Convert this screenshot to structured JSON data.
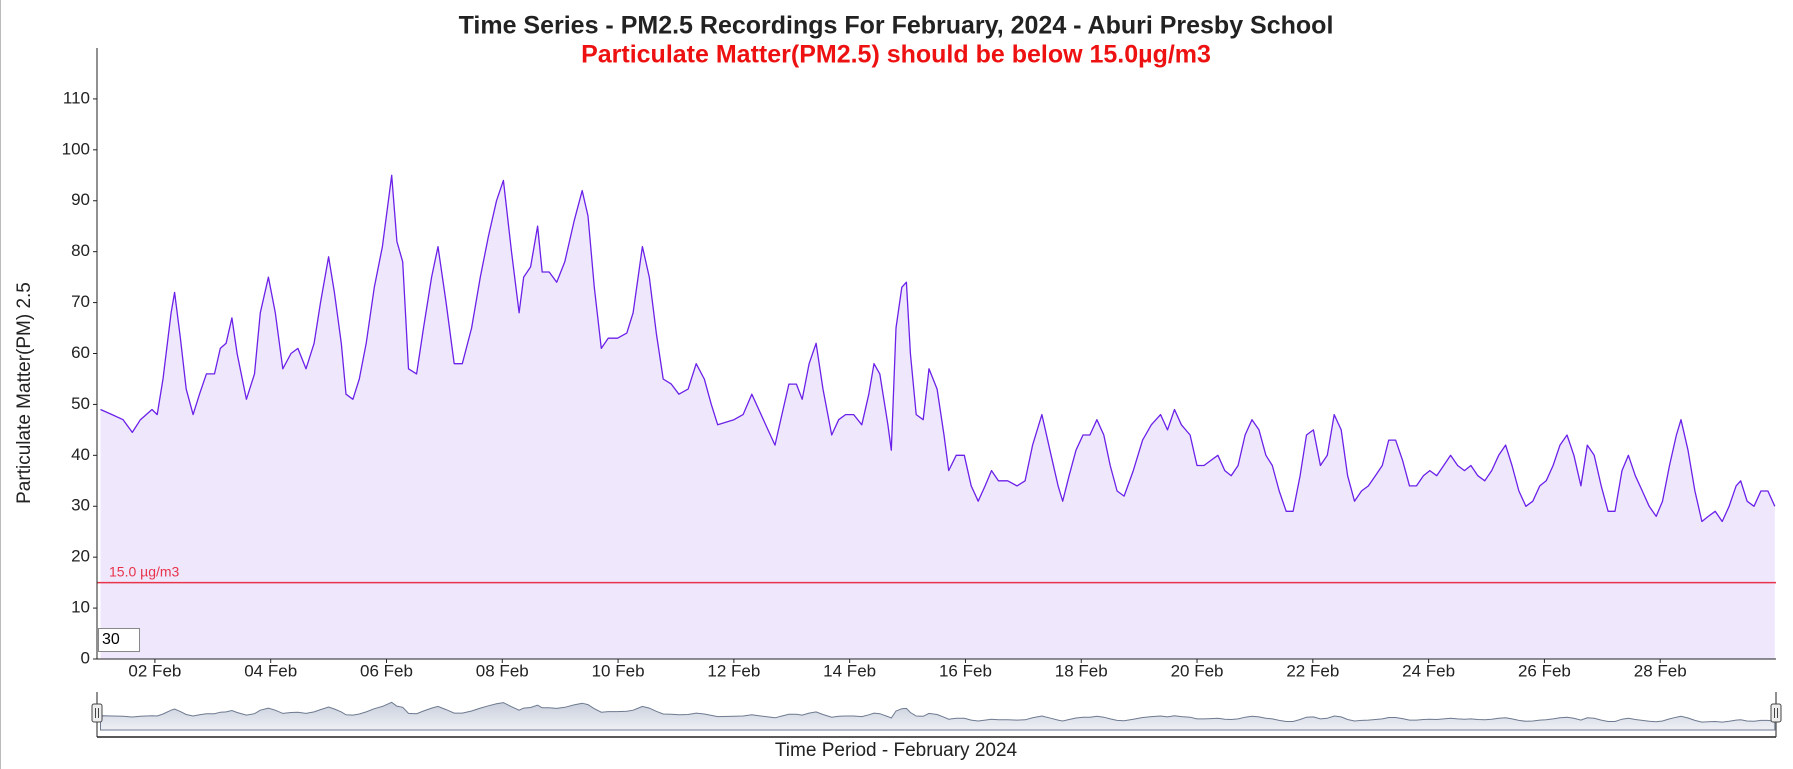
{
  "chart_data": {
    "type": "line",
    "title": "Time Series - PM2.5 Recordings For February, 2024 - Aburi Presby School",
    "subtitle": "Particulate Matter(PM2.5) should be below 15.0µg/m3",
    "y_label": "Particulate Matter(PM) 2.5",
    "x_label": "Time Period - February 2024",
    "color": "#6b21e8",
    "fill_color": "#efe8fd",
    "roll_period": 30,
    "threshold": {
      "value": 15,
      "label": "15.0 µg/m3",
      "color": "#e8334a"
    },
    "xlim": [
      1,
      30
    ],
    "xticks": [
      {
        "value": 2,
        "label": "02 Feb"
      },
      {
        "value": 4,
        "label": "04 Feb"
      },
      {
        "value": 6,
        "label": "06 Feb"
      },
      {
        "value": 8,
        "label": "08 Feb"
      },
      {
        "value": 10,
        "label": "10 Feb"
      },
      {
        "value": 12,
        "label": "12 Feb"
      },
      {
        "value": 14,
        "label": "14 Feb"
      },
      {
        "value": 16,
        "label": "16 Feb"
      },
      {
        "value": 18,
        "label": "18 Feb"
      },
      {
        "value": 20,
        "label": "20 Feb"
      },
      {
        "value": 22,
        "label": "22 Feb"
      },
      {
        "value": 24,
        "label": "24 Feb"
      },
      {
        "value": 26,
        "label": "26 Feb"
      },
      {
        "value": 28,
        "label": "28 Feb"
      }
    ],
    "ylim": [
      0,
      120
    ],
    "yticks": [
      0,
      10,
      20,
      30,
      40,
      50,
      60,
      70,
      80,
      90,
      100,
      110
    ],
    "x": [
      1.06,
      1.26,
      1.45,
      1.61,
      1.75,
      1.95,
      2.04,
      2.14,
      2.28,
      2.34,
      2.44,
      2.54,
      2.66,
      2.77,
      2.89,
      3.03,
      3.13,
      3.23,
      3.33,
      3.42,
      3.58,
      3.72,
      3.82,
      3.96,
      4.08,
      4.21,
      4.35,
      4.47,
      4.61,
      4.75,
      4.86,
      5.0,
      5.1,
      5.22,
      5.3,
      5.42,
      5.53,
      5.65,
      5.79,
      5.93,
      6.09,
      6.18,
      6.28,
      6.38,
      6.52,
      6.64,
      6.78,
      6.89,
      7.03,
      7.17,
      7.31,
      7.47,
      7.62,
      7.76,
      7.9,
      8.02,
      8.16,
      8.29,
      8.37,
      8.49,
      8.61,
      8.69,
      8.81,
      8.94,
      9.08,
      9.24,
      9.38,
      9.48,
      9.59,
      9.71,
      9.83,
      9.99,
      10.15,
      10.26,
      10.42,
      10.54,
      10.66,
      10.78,
      10.92,
      11.05,
      11.21,
      11.35,
      11.49,
      11.61,
      11.72,
      12.0,
      12.16,
      12.31,
      12.43,
      12.59,
      12.71,
      12.83,
      12.95,
      13.08,
      13.18,
      13.3,
      13.42,
      13.54,
      13.69,
      13.81,
      13.93,
      14.07,
      14.21,
      14.33,
      14.42,
      14.52,
      14.66,
      14.72,
      14.8,
      14.9,
      14.98,
      15.05,
      15.15,
      15.27,
      15.37,
      15.51,
      15.63,
      15.71,
      15.84,
      15.98,
      16.1,
      16.22,
      16.34,
      16.45,
      16.57,
      16.73,
      16.89,
      17.03,
      17.16,
      17.32,
      17.48,
      17.6,
      17.68,
      17.79,
      17.91,
      18.03,
      18.15,
      18.27,
      18.39,
      18.5,
      18.62,
      18.74,
      18.9,
      19.06,
      19.21,
      19.37,
      19.49,
      19.61,
      19.73,
      19.88,
      20.0,
      20.12,
      20.24,
      20.36,
      20.48,
      20.59,
      20.71,
      20.83,
      20.95,
      21.07,
      21.19,
      21.3,
      21.42,
      21.54,
      21.66,
      21.78,
      21.89,
      22.01,
      22.13,
      22.25,
      22.37,
      22.49,
      22.6,
      22.72,
      22.84,
      22.96,
      23.08,
      23.2,
      23.31,
      23.43,
      23.55,
      23.67,
      23.79,
      23.91,
      24.02,
      24.14,
      24.26,
      24.38,
      24.5,
      24.62,
      24.73,
      24.85,
      24.97,
      25.09,
      25.21,
      25.33,
      25.44,
      25.56,
      25.68,
      25.8,
      25.92,
      26.03,
      26.15,
      26.27,
      26.39,
      26.51,
      26.63,
      26.74,
      26.86,
      26.98,
      27.1,
      27.22,
      27.34,
      27.45,
      27.57,
      27.69,
      27.81,
      27.93,
      28.04,
      28.16,
      28.28,
      28.36,
      28.48,
      28.6,
      28.72,
      28.83,
      28.95,
      29.07,
      29.19,
      29.31,
      29.39,
      29.5,
      29.62,
      29.74,
      29.86,
      29.98
    ],
    "values": [
      49,
      48,
      47,
      44.5,
      47,
      49,
      48,
      55,
      68,
      72,
      63,
      53,
      48,
      52,
      56,
      56,
      61,
      62,
      67,
      60,
      51,
      56,
      68,
      75,
      68,
      57,
      60,
      61,
      57,
      62,
      70,
      79,
      72,
      62,
      52,
      51,
      55,
      62,
      73,
      81,
      95,
      82,
      78,
      57,
      56,
      65,
      75,
      81,
      70,
      58,
      58,
      65,
      75,
      83,
      90,
      94,
      80,
      68,
      75,
      77,
      85,
      76,
      76,
      74,
      78,
      86,
      92,
      87,
      73,
      61,
      63,
      63,
      64,
      68,
      81,
      75,
      64,
      55,
      54,
      52,
      53,
      58,
      55,
      50,
      46,
      47,
      48,
      52,
      49,
      45,
      42,
      48,
      54,
      54,
      51,
      58,
      62,
      53,
      44,
      47,
      48,
      48,
      46,
      52,
      58,
      56,
      46,
      41,
      65,
      73,
      74,
      60,
      48,
      47,
      57,
      53,
      44,
      37,
      40,
      40,
      34,
      31,
      34,
      37,
      35,
      35,
      34,
      35,
      42,
      48,
      40,
      34,
      31,
      36,
      41,
      44,
      44,
      47,
      44,
      38,
      33,
      32,
      37,
      43,
      46,
      48,
      45,
      49,
      46,
      44,
      38,
      38,
      39,
      40,
      37,
      36,
      38,
      44,
      47,
      45,
      40,
      38,
      33,
      29,
      29,
      36,
      44,
      45,
      38,
      40,
      48,
      45,
      36,
      31,
      33,
      34,
      36,
      38,
      43,
      43,
      39,
      34,
      34,
      36,
      37,
      36,
      38,
      40,
      38,
      37,
      38,
      36,
      35,
      37,
      40,
      42,
      38,
      33,
      30,
      31,
      34,
      35,
      38,
      42,
      44,
      40,
      34,
      42,
      40,
      34,
      29,
      29,
      37,
      40,
      36,
      33,
      30,
      28,
      31,
      38,
      44,
      47,
      41,
      33,
      27,
      28,
      29,
      27,
      30,
      34,
      35,
      31,
      30,
      33,
      33,
      30
    ]
  }
}
